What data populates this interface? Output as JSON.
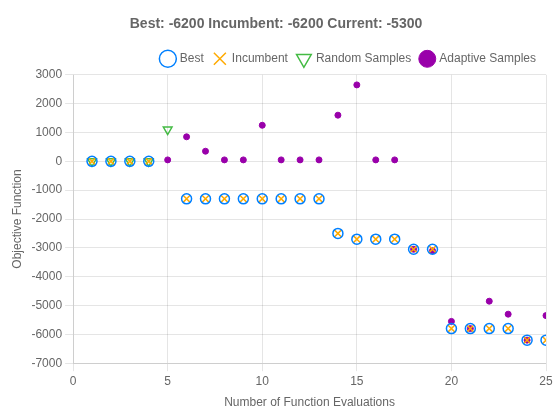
{
  "chart_data": {
    "type": "scatter",
    "title": "Best: -6200 Incumbent: -6200 Current: -5300",
    "xlabel": "Number of Function Evaluations",
    "ylabel": "Objective Function",
    "xlim": [
      0,
      25
    ],
    "ylim": [
      -7000,
      3000
    ],
    "xticks": [
      0,
      5,
      10,
      15,
      20,
      25
    ],
    "yticks": [
      -7000,
      -6000,
      -5000,
      -4000,
      -3000,
      -2000,
      -1000,
      0,
      1000,
      2000,
      3000
    ],
    "grid": true,
    "legend": "upper right",
    "series": [
      {
        "name": "Best",
        "color": "#0080ff",
        "marker": "open_circle",
        "x": [
          1,
          2,
          3,
          4,
          6,
          7,
          8,
          9,
          10,
          11,
          12,
          13,
          14,
          15,
          16,
          17,
          18,
          19,
          20,
          21,
          22,
          23,
          24,
          25
        ],
        "values": [
          0,
          0,
          0,
          0,
          -1300,
          -1300,
          -1300,
          -1300,
          -1300,
          -1300,
          -1300,
          -1300,
          -2500,
          -2700,
          -2700,
          -2700,
          -3050,
          -3050,
          -5800,
          -5800,
          -5800,
          -5800,
          -6200,
          -6200
        ]
      },
      {
        "name": "Incumbent",
        "color": "#ffaa00",
        "marker": "x",
        "x": [
          1,
          2,
          3,
          4,
          6,
          7,
          8,
          9,
          10,
          11,
          12,
          13,
          14,
          15,
          16,
          17,
          18,
          19,
          20,
          21,
          22,
          23,
          24,
          25
        ],
        "values": [
          0,
          0,
          0,
          0,
          -1300,
          -1300,
          -1300,
          -1300,
          -1300,
          -1300,
          -1300,
          -1300,
          -2500,
          -2700,
          -2700,
          -2700,
          -3050,
          -3050,
          -5800,
          -5800,
          -5800,
          -5800,
          -6200,
          -6200
        ]
      },
      {
        "name": "Random Samples",
        "color": "#44bb44",
        "marker": "open_triangle_down",
        "x": [
          1,
          2,
          3,
          4,
          5
        ],
        "values": [
          0,
          0,
          0,
          0,
          1100
        ]
      },
      {
        "name": "Adaptive Samples",
        "color": "#9900aa",
        "marker": "dot",
        "x": [
          5,
          6,
          7,
          8,
          9,
          10,
          11,
          12,
          13,
          14,
          15,
          16,
          17,
          18,
          19,
          20,
          21,
          22,
          23,
          24,
          25
        ],
        "values": [
          50,
          850,
          350,
          50,
          50,
          1250,
          50,
          50,
          50,
          1600,
          2650,
          50,
          50,
          -3050,
          -3100,
          -5550,
          -5800,
          -4850,
          -5300,
          -6200,
          -5350
        ]
      }
    ]
  }
}
